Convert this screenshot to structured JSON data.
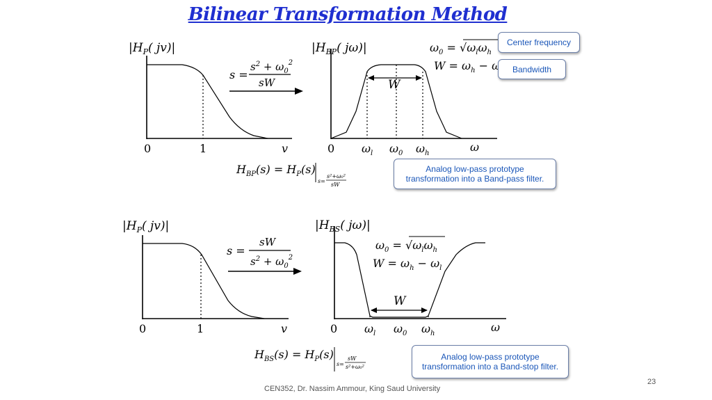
{
  "slide": {
    "title": "Bilinear Transformation Method",
    "footer": "CEN352, Dr. Nassim Ammour, King Saud University",
    "page_number": "23"
  },
  "callouts": {
    "center_frequency": "Center frequency",
    "bandwidth": "Bandwidth",
    "bandpass_line1": "Analog low-pass prototype",
    "bandpass_line2": "transformation into a Band-pass filter.",
    "bandstop_line1": "Analog low-pass prototype",
    "bandstop_line2": "transformation into a Band-stop filter."
  },
  "plots": {
    "lp_ylabel_H": "H",
    "lp_ylabel_sub": "P",
    "lp_ylabel_arg": "( jv)",
    "lp_tick_0": "0",
    "lp_tick_1": "1",
    "lp_axis": "v",
    "bp_ylabel_H": "H",
    "bp_ylabel_sub": "BP",
    "bp_ylabel_arg": "( jω)",
    "bs_ylabel_H": "H",
    "bs_ylabel_sub": "BS",
    "bs_ylabel_arg": "( jω)",
    "tick_0": "0",
    "omega": "ω",
    "omega_l_sub": "l",
    "omega_0_sub": "0",
    "omega_h_sub": "h",
    "W": "W"
  },
  "equations": {
    "s_eq": "s =",
    "bp_num": "s",
    "bp_num_rest": " + ω",
    "bp_den": "sW",
    "bs_num": "sW",
    "bs_den": "s",
    "bs_den_rest": " + ω",
    "sup2": "2",
    "sub0": "0",
    "w0_lhs": "ω",
    "w0_eq": " = √",
    "w0_rhs": "ω",
    "W_lhs": "W = ω",
    "W_minus": " − ω",
    "HBP_eq": "H",
    "HBP_eq_rest": "(s) = H",
    "HBP_eq_tail": "(s)",
    "HBS_eq": "H",
    "HBS_eq_rest": "(s) = H",
    "HBS_eq_tail": "(s)",
    "cond_bp": "s=",
    "cond_bs": "s=",
    "small_sW": "sW",
    "small_num": "s²+ω₀²"
  }
}
